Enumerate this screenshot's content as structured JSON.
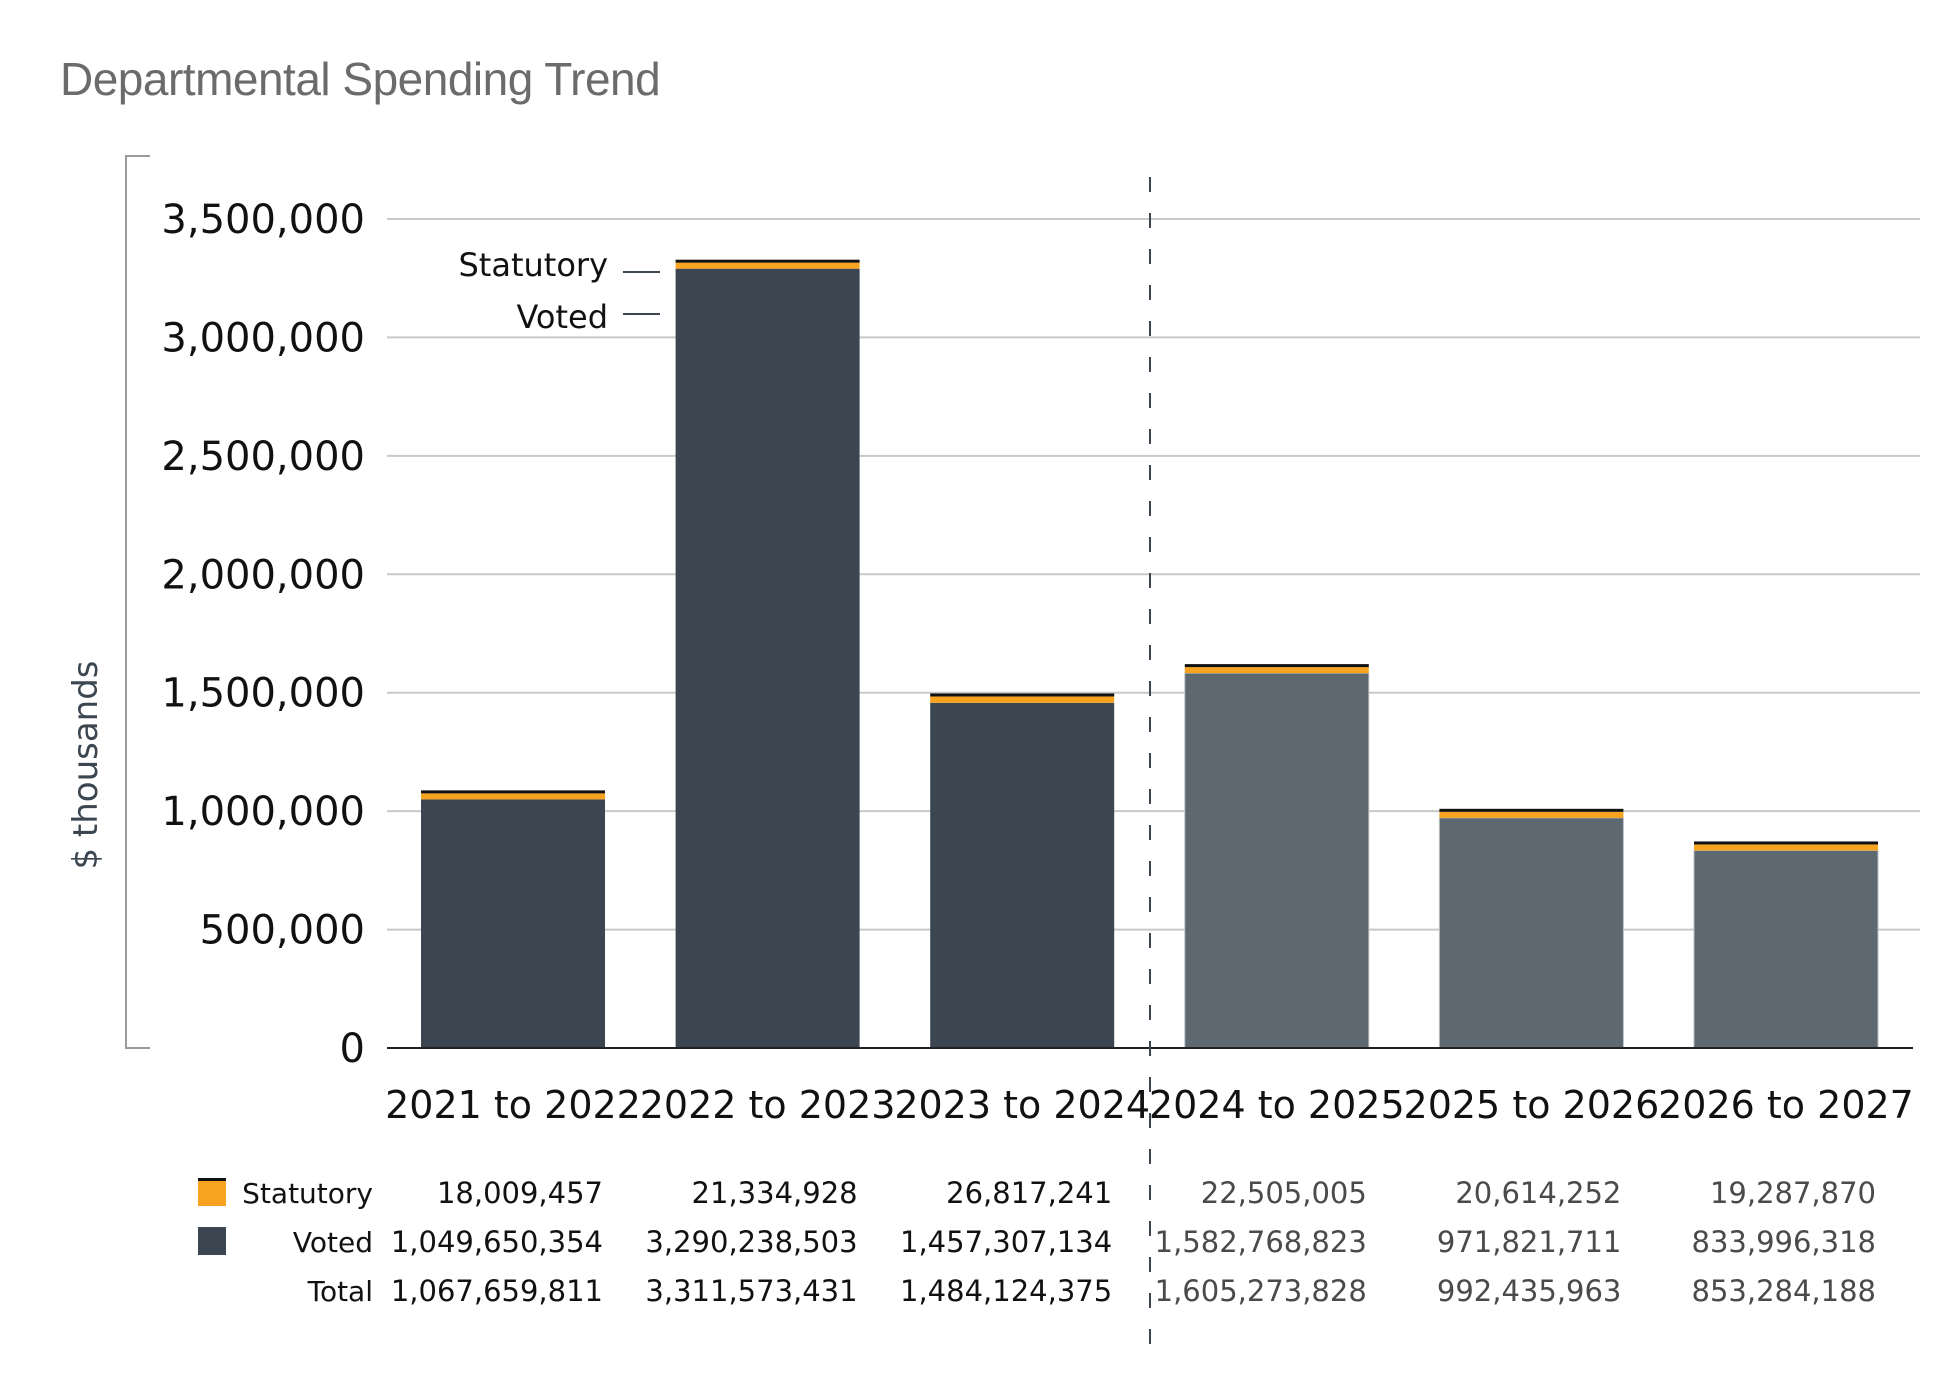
{
  "chart_data": {
    "type": "bar",
    "stacked": true,
    "title": "Departmental Spending Trend",
    "xlabel": "",
    "ylabel": "$ thousands",
    "ylim": [
      0,
      3500000
    ],
    "yticks": [
      0,
      500000,
      1000000,
      1500000,
      2000000,
      2500000,
      3000000,
      3500000
    ],
    "ytick_labels": [
      "0",
      "500,000",
      "1,000,000",
      "1,500,000",
      "2,000,000",
      "2,500,000",
      "3,000,000",
      "3,500,000"
    ],
    "grid": true,
    "categories": [
      "2021 to 2022",
      "2022 to 2023",
      "2023 to 2024",
      "2024 to 2025",
      "2025 to 2026",
      "2026 to 2027"
    ],
    "forecast_start_index": 3,
    "series": [
      {
        "name": "Voted",
        "color": "#3c4650",
        "forecast_color": "#59636c",
        "values": [
          1049650354,
          3290238503,
          1457307134,
          1582768823,
          971821711,
          833996318
        ],
        "display_values": [
          "1,049,650,354",
          "3,290,238,503",
          "1,457,307,134",
          "1,582,768,823",
          "971,821,711",
          "833,996,318"
        ]
      },
      {
        "name": "Statutory",
        "color": "#f8a31f",
        "values": [
          18009457,
          21334928,
          26817241,
          22505005,
          20614252,
          19287870
        ],
        "display_values": [
          "18,009,457",
          "21,334,928",
          "26,817,241",
          "22,505,005",
          "20,614,252",
          "19,287,870"
        ]
      }
    ],
    "totals": {
      "name": "Total",
      "values": [
        1067659811,
        3311573431,
        1484124375,
        1605273828,
        992435963,
        853284188
      ],
      "display_values": [
        "1,067,659,811",
        "3,311,573,431",
        "1,484,124,375",
        "1,605,273,828",
        "992,435,963",
        "853,284,188"
      ]
    },
    "annotations": [
      {
        "text": "Statutory",
        "target": "Statutory",
        "category": "2022 to 2023"
      },
      {
        "text": "Voted",
        "target": "Voted",
        "category": "2022 to 2023"
      }
    ],
    "legend": {
      "placement": "bottom-table",
      "entries": [
        {
          "name": "Statutory",
          "color": "#f8a31f"
        },
        {
          "name": "Voted",
          "color": "#3c4650"
        }
      ]
    },
    "value_scale_note": "Bar heights plotted in the chart appear at 1/1000 of table values (table shown in dollars, axis in $ thousands)"
  }
}
